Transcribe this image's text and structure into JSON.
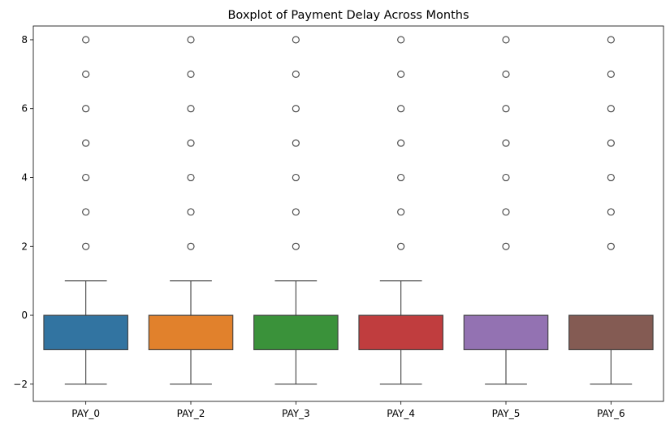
{
  "chart_data": {
    "type": "box",
    "title": "Boxplot of Payment Delay Across Months",
    "xlabel": "",
    "ylabel": "",
    "ylim": [
      -2.5,
      8.4
    ],
    "yticks": [
      -2,
      0,
      2,
      4,
      6,
      8
    ],
    "grid": false,
    "legend": "none",
    "categories": [
      "PAY_0",
      "PAY_2",
      "PAY_3",
      "PAY_4",
      "PAY_5",
      "PAY_6"
    ],
    "series": [
      {
        "category": "PAY_0",
        "color": "#3274a1",
        "whisker_low": -2,
        "q1": -1,
        "median": 0,
        "q3": 0,
        "whisker_high": 1,
        "outliers": [
          2,
          3,
          4,
          5,
          6,
          7,
          8
        ]
      },
      {
        "category": "PAY_2",
        "color": "#e1812c",
        "whisker_low": -2,
        "q1": -1,
        "median": 0,
        "q3": 0,
        "whisker_high": 1,
        "outliers": [
          2,
          3,
          4,
          5,
          6,
          7,
          8
        ]
      },
      {
        "category": "PAY_3",
        "color": "#3a923a",
        "whisker_low": -2,
        "q1": -1,
        "median": 0,
        "q3": 0,
        "whisker_high": 1,
        "outliers": [
          2,
          3,
          4,
          5,
          6,
          7,
          8
        ]
      },
      {
        "category": "PAY_4",
        "color": "#c03d3e",
        "whisker_low": -2,
        "q1": -1,
        "median": 0,
        "q3": 0,
        "whisker_high": 1,
        "outliers": [
          2,
          3,
          4,
          5,
          6,
          7,
          8
        ]
      },
      {
        "category": "PAY_5",
        "color": "#9372b2",
        "whisker_low": -2,
        "q1": -1,
        "median": 0,
        "q3": 0,
        "whisker_high": 0,
        "outliers": [
          2,
          3,
          4,
          5,
          6,
          7,
          8
        ]
      },
      {
        "category": "PAY_6",
        "color": "#845b53",
        "whisker_low": -2,
        "q1": -1,
        "median": 0,
        "q3": 0,
        "whisker_high": 0,
        "outliers": [
          2,
          3,
          4,
          5,
          6,
          7,
          8
        ]
      }
    ]
  }
}
